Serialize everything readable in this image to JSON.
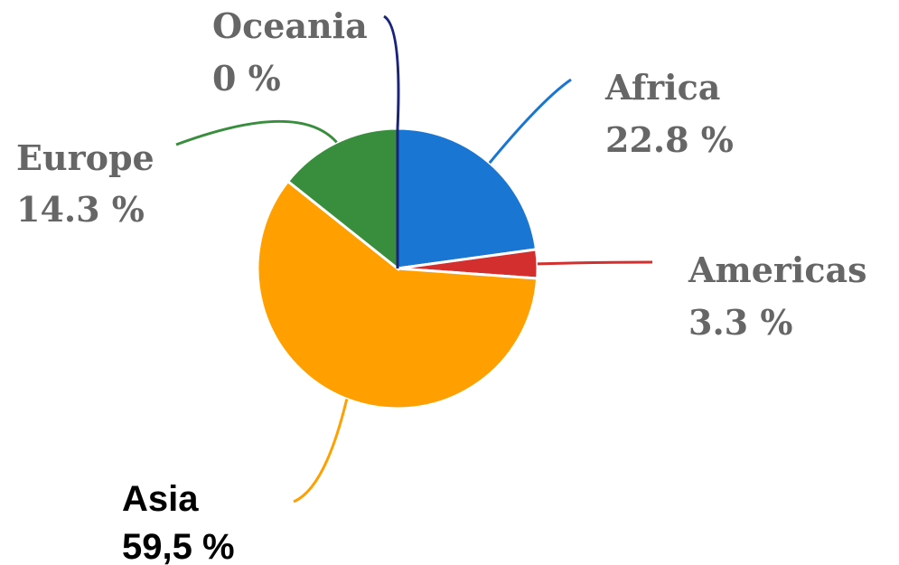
{
  "chart_data": {
    "type": "pie",
    "categories": [
      "Africa",
      "Americas",
      "Asia",
      "Europe",
      "Oceania"
    ],
    "values": [
      22.8,
      3.3,
      59.5,
      14.3,
      0
    ],
    "value_labels": [
      "22.8 %",
      "3.3 %",
      "59,5 %",
      "14.3 %",
      "0 %"
    ],
    "colors": [
      "#1976d2",
      "#d32f2f",
      "#ffa000",
      "#388e3c",
      "#1a237e"
    ]
  }
}
